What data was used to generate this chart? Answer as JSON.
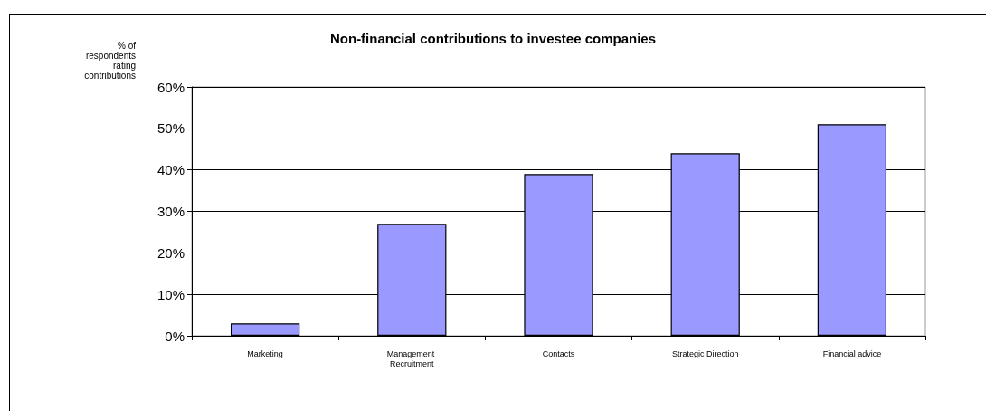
{
  "chart_data": {
    "type": "bar",
    "title": "Non-financial contributions to investee companies",
    "ylabel": "% of respondents rating contributions",
    "categories": [
      "Marketing",
      "Management Recruitment",
      "Contacts",
      "Strategic Direction",
      "Financial advice"
    ],
    "values": [
      3,
      27,
      39,
      44,
      51
    ],
    "color": "#9999ff",
    "ylim": [
      0,
      60
    ],
    "yticks": [
      {
        "value": 0,
        "label": "0%"
      },
      {
        "value": 10,
        "label": "10%"
      },
      {
        "value": 20,
        "label": "20%"
      },
      {
        "value": 30,
        "label": "30%"
      },
      {
        "value": 40,
        "label": "40%"
      },
      {
        "value": 50,
        "label": "50%"
      },
      {
        "value": 60,
        "label": "60%"
      }
    ],
    "grid": "y"
  }
}
